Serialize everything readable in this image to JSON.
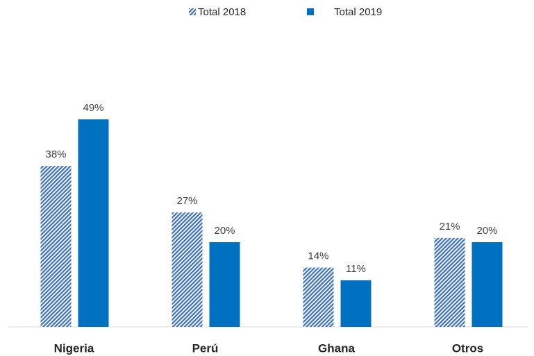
{
  "chart_data": {
    "type": "bar",
    "categories": [
      "Nigeria",
      "Perú",
      "Ghana",
      "Otros"
    ],
    "series": [
      {
        "name": "Total 2018",
        "color": "#3a6fc4",
        "fill": "hatch",
        "values": [
          38,
          27,
          14,
          21
        ],
        "value_labels": [
          "38%",
          "27%",
          "14%",
          "21%"
        ]
      },
      {
        "name": "Total 2019",
        "color": "#0070c0",
        "fill": "solid",
        "values": [
          49,
          20,
          11,
          20
        ],
        "value_labels": [
          "49%",
          "20%",
          "11%",
          "20%"
        ]
      }
    ],
    "legend": "top"
  }
}
